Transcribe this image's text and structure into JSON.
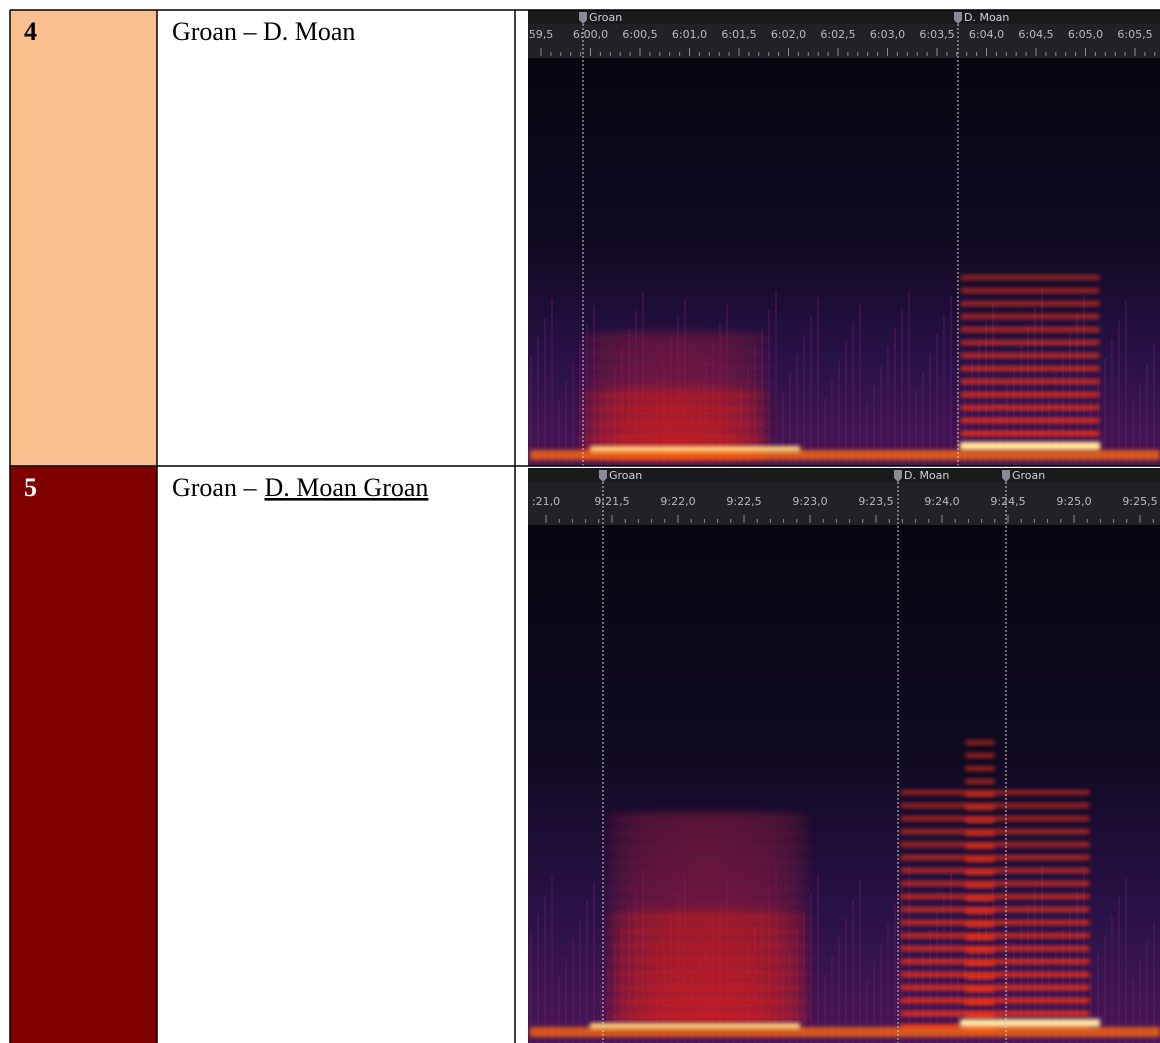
{
  "table": {
    "rows": [
      {
        "number": "4",
        "label": [
          "Groan – D. Moan"
        ],
        "spectrogram": {
          "markers": [
            "Groan",
            "D. Moan"
          ],
          "timeline": [
            "59,5",
            "6:00,0",
            "6:00,5",
            "6:01,0",
            "6:01,5",
            "6:02,0",
            "6:02,5",
            "6:03,0",
            "6:03,5",
            "6:04,0",
            "6:04,5",
            "6:05,0",
            "6:05,5"
          ]
        }
      },
      {
        "number": "5",
        "label": [
          "Groan –",
          "D. Moan Groan"
        ],
        "spectrogram": {
          "markers": [
            "Groan",
            "D. Moan",
            "Groan"
          ],
          "timeline": [
            ":21,0",
            "9:21,5",
            "9:22,0",
            "9:22,5",
            "9:23,0",
            "9:23,5",
            "9:24,0",
            "9:24,5",
            "9:25,0",
            "9:25,5"
          ]
        }
      }
    ]
  }
}
